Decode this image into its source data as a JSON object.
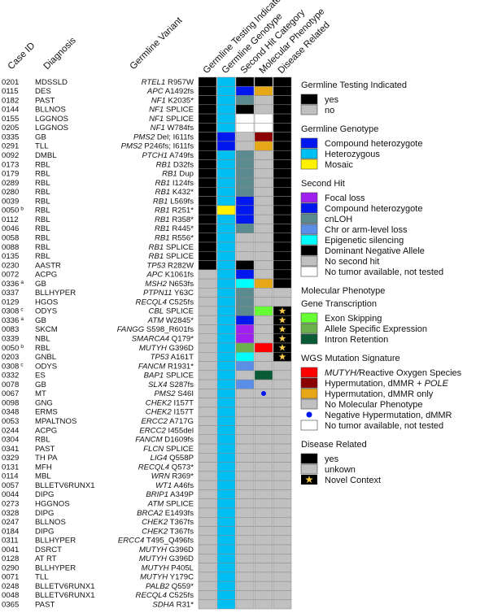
{
  "headers": {
    "case_id": "Case ID",
    "diagnosis": "Diagnosis",
    "variant": "Germline Variant",
    "col1": "Germline Testing Indicated",
    "col2": "Germline Genotype",
    "col3": "Second Hit Category",
    "col4": "Molecular Phenotype",
    "col5": "Disease Related"
  },
  "colors": {
    "black": "#000000",
    "gray": "#c0c0c0",
    "white": "#ffffff",
    "blue": "#0018f0",
    "cyan": "#00bff3",
    "yellow": "#fff200",
    "purple": "#a020f0",
    "teal": "#5b8a8f",
    "lightblue": "#5b8ee6",
    "aqua": "#00ffff",
    "green_bright": "#66ff33",
    "green": "#6ab04c",
    "green_dark": "#0a5c36",
    "red": "#ff0000",
    "darkred": "#8b0000",
    "orange": "#e6a817"
  },
  "chart_data": {
    "type": "heatmap",
    "columns": [
      "Germline Testing Indicated",
      "Germline Genotype",
      "Second Hit Category",
      "Molecular Phenotype",
      "Disease Related"
    ],
    "rows": [
      {
        "id": "0201",
        "sup": "",
        "dx": "MDSSLD",
        "gene": "RTEL1",
        "var": "R957W",
        "cells": [
          "black",
          "cyan",
          "black",
          "black",
          "black"
        ]
      },
      {
        "id": "0115",
        "sup": "",
        "dx": "DES",
        "gene": "APC",
        "var": "A1492fs",
        "cells": [
          "black",
          "cyan",
          "blue",
          "orange",
          "black"
        ]
      },
      {
        "id": "0182",
        "sup": "",
        "dx": "PAST",
        "gene": "NF1",
        "var": "K2035*",
        "cells": [
          "black",
          "cyan",
          "teal",
          "gray",
          "black"
        ]
      },
      {
        "id": "0144",
        "sup": "",
        "dx": "BLLNOS",
        "gene": "NF1",
        "var": "SPLICE",
        "cells": [
          "black",
          "cyan",
          "black",
          "gray",
          "black"
        ]
      },
      {
        "id": "0155",
        "sup": "",
        "dx": "LGGNOS",
        "gene": "NF1",
        "var": "SPLICE",
        "cells": [
          "black",
          "cyan",
          "white",
          "white",
          "black"
        ]
      },
      {
        "id": "0205",
        "sup": "",
        "dx": "LGGNOS",
        "gene": "NF1",
        "var": "W784fs",
        "cells": [
          "black",
          "cyan",
          "white",
          "white",
          "black"
        ]
      },
      {
        "id": "0335",
        "sup": "",
        "dx": "GB",
        "gene": "PMS2",
        "var": "Del; I611fs",
        "cells": [
          "black",
          "blue",
          "gray",
          "darkred",
          "black"
        ]
      },
      {
        "id": "0291",
        "sup": "",
        "dx": "TLL",
        "gene": "PMS2",
        "var": "P246fs; I611fs",
        "cells": [
          "black",
          "blue",
          "gray",
          "orange",
          "black"
        ]
      },
      {
        "id": "0092",
        "sup": "",
        "dx": "DMBL",
        "gene": "PTCH1",
        "var": "A749fs",
        "cells": [
          "black",
          "cyan",
          "teal",
          "gray",
          "black"
        ]
      },
      {
        "id": "0173",
        "sup": "",
        "dx": "RBL",
        "gene": "RB1",
        "var": "D32fs",
        "cells": [
          "black",
          "cyan",
          "teal",
          "gray",
          "black"
        ]
      },
      {
        "id": "0179",
        "sup": "",
        "dx": "RBL",
        "gene": "RB1",
        "var": "Dup",
        "cells": [
          "black",
          "cyan",
          "teal",
          "gray",
          "black"
        ]
      },
      {
        "id": "0289",
        "sup": "",
        "dx": "RBL",
        "gene": "RB1",
        "var": "I124fs",
        "cells": [
          "black",
          "cyan",
          "teal",
          "gray",
          "black"
        ]
      },
      {
        "id": "0280",
        "sup": "",
        "dx": "RBL",
        "gene": "RB1",
        "var": "K432*",
        "cells": [
          "black",
          "cyan",
          "teal",
          "gray",
          "black"
        ]
      },
      {
        "id": "0039",
        "sup": "",
        "dx": "RBL",
        "gene": "RB1",
        "var": "L569fs",
        "cells": [
          "black",
          "cyan",
          "blue",
          "gray",
          "black"
        ]
      },
      {
        "id": "0050",
        "sup": "b",
        "dx": "RBL",
        "gene": "RB1",
        "var": "R251*",
        "cells": [
          "black",
          "yellow",
          "blue",
          "gray",
          "black"
        ]
      },
      {
        "id": "0112",
        "sup": "",
        "dx": "RBL",
        "gene": "RB1",
        "var": "R358*",
        "cells": [
          "black",
          "cyan",
          "blue",
          "gray",
          "black"
        ]
      },
      {
        "id": "0046",
        "sup": "",
        "dx": "RBL",
        "gene": "RB1",
        "var": "R445*",
        "cells": [
          "black",
          "cyan",
          "teal",
          "gray",
          "black"
        ]
      },
      {
        "id": "0058",
        "sup": "",
        "dx": "RBL",
        "gene": "RB1",
        "var": "R556*",
        "cells": [
          "black",
          "cyan",
          "gray",
          "gray",
          "black"
        ]
      },
      {
        "id": "0088",
        "sup": "",
        "dx": "RBL",
        "gene": "RB1",
        "var": "SPLICE",
        "cells": [
          "black",
          "cyan",
          "gray",
          "gray",
          "black"
        ]
      },
      {
        "id": "0135",
        "sup": "",
        "dx": "RBL",
        "gene": "RB1",
        "var": "SPLICE",
        "cells": [
          "black",
          "cyan",
          "gray",
          "gray",
          "black"
        ]
      },
      {
        "id": "0230",
        "sup": "",
        "dx": "AASTR",
        "gene": "TP53",
        "var": "R282W",
        "cells": [
          "black",
          "cyan",
          "black",
          "gray",
          "black"
        ]
      },
      {
        "id": "0072",
        "sup": "",
        "dx": "ACPG",
        "gene": "APC",
        "var": "K1061fs",
        "cells": [
          "gray",
          "cyan",
          "blue",
          "gray",
          "black"
        ]
      },
      {
        "id": "0336",
        "sup": "a",
        "dx": "GB",
        "gene": "MSH2",
        "var": "N653fs",
        "cells": [
          "gray",
          "cyan",
          "aqua",
          "orange",
          "black"
        ]
      },
      {
        "id": "0337",
        "sup": "",
        "dx": "BLLHYPER",
        "gene": "PTPN11",
        "var": "Y63C",
        "cells": [
          "gray",
          "cyan",
          "teal",
          "gray",
          "gray"
        ]
      },
      {
        "id": "0129",
        "sup": "",
        "dx": "HGOS",
        "gene": "RECQL4",
        "var": "C525fs",
        "cells": [
          "gray",
          "cyan",
          "teal",
          "gray",
          "gray"
        ]
      },
      {
        "id": "0308",
        "sup": "c",
        "dx": "ODYS",
        "gene": "CBL",
        "var": "SPLICE",
        "cells": [
          "gray",
          "cyan",
          "teal",
          "green_bright",
          "star"
        ]
      },
      {
        "id": "0336",
        "sup": "a",
        "dx": "GB",
        "gene": "ATM",
        "var": "W2845*",
        "cells": [
          "gray",
          "cyan",
          "blue",
          "gray",
          "star"
        ]
      },
      {
        "id": "0083",
        "sup": "",
        "dx": "SKCM",
        "gene": "FANGG",
        "var": "S598_R601fs",
        "cells": [
          "gray",
          "cyan",
          "purple",
          "gray",
          "star"
        ]
      },
      {
        "id": "0339",
        "sup": "",
        "dx": "NBL",
        "gene": "SMARCA4",
        "var": "Q179*",
        "cells": [
          "gray",
          "cyan",
          "purple",
          "gray",
          "star"
        ]
      },
      {
        "id": "0050",
        "sup": "b",
        "dx": "RBL",
        "gene": "MUTYH",
        "var": "G396D",
        "cells": [
          "gray",
          "cyan",
          "green",
          "red",
          "star"
        ]
      },
      {
        "id": "0203",
        "sup": "",
        "dx": "GNBL",
        "gene": "TP53",
        "var": "A161T",
        "cells": [
          "gray",
          "cyan",
          "aqua",
          "gray",
          "star"
        ]
      },
      {
        "id": "0308",
        "sup": "c",
        "dx": "ODYS",
        "gene": "FANCM",
        "var": "R1931*",
        "cells": [
          "gray",
          "cyan",
          "lightblue",
          "gray",
          "gray"
        ]
      },
      {
        "id": "0332",
        "sup": "",
        "dx": "ES",
        "gene": "BAP1",
        "var": "SPLICE",
        "cells": [
          "gray",
          "cyan",
          "gray",
          "green_dark",
          "gray"
        ]
      },
      {
        "id": "0078",
        "sup": "",
        "dx": "GB",
        "gene": "SLX4",
        "var": "S287fs",
        "cells": [
          "gray",
          "cyan",
          "lightblue",
          "gray",
          "gray"
        ]
      },
      {
        "id": "0067",
        "sup": "",
        "dx": "MT",
        "gene": "PMS2",
        "var": "S46I",
        "cells": [
          "gray",
          "cyan",
          "gray",
          "dot",
          "gray"
        ]
      },
      {
        "id": "0098",
        "sup": "",
        "dx": "GNG",
        "gene": "CHEK2",
        "var": "I157T",
        "cells": [
          "gray",
          "cyan",
          "gray",
          "gray",
          "gray"
        ]
      },
      {
        "id": "0348",
        "sup": "",
        "dx": "ERMS",
        "gene": "CHEK2",
        "var": "I157T",
        "cells": [
          "gray",
          "cyan",
          "gray",
          "gray",
          "gray"
        ]
      },
      {
        "id": "0053",
        "sup": "",
        "dx": "MPALTNOS",
        "gene": "ERCC2",
        "var": "A717G",
        "cells": [
          "gray",
          "cyan",
          "gray",
          "gray",
          "gray"
        ]
      },
      {
        "id": "0244",
        "sup": "",
        "dx": "ACPG",
        "gene": "ERCC2",
        "var": "I455del",
        "cells": [
          "gray",
          "cyan",
          "gray",
          "gray",
          "gray"
        ]
      },
      {
        "id": "0304",
        "sup": "",
        "dx": "RBL",
        "gene": "FANCM",
        "var": "D1609fs",
        "cells": [
          "gray",
          "cyan",
          "gray",
          "gray",
          "gray"
        ]
      },
      {
        "id": "0341",
        "sup": "",
        "dx": "PAST",
        "gene": "FLCN",
        "var": "SPLICE",
        "cells": [
          "gray",
          "cyan",
          "gray",
          "gray",
          "gray"
        ]
      },
      {
        "id": "0329",
        "sup": "",
        "dx": "TH PA",
        "gene": "LIG4",
        "var": "Q558P",
        "cells": [
          "gray",
          "cyan",
          "gray",
          "gray",
          "gray"
        ]
      },
      {
        "id": "0131",
        "sup": "",
        "dx": "MFH",
        "gene": "RECQL4",
        "var": "Q573*",
        "cells": [
          "gray",
          "cyan",
          "gray",
          "gray",
          "gray"
        ]
      },
      {
        "id": "0114",
        "sup": "",
        "dx": "MBL",
        "gene": "WRN",
        "var": "R369*",
        "cells": [
          "gray",
          "cyan",
          "gray",
          "gray",
          "gray"
        ]
      },
      {
        "id": "0057",
        "sup": "",
        "dx": "BLLETV6RUNX1",
        "gene": "WT1",
        "var": "A46fs",
        "cells": [
          "gray",
          "cyan",
          "gray",
          "gray",
          "gray"
        ]
      },
      {
        "id": "0044",
        "sup": "",
        "dx": "DIPG",
        "gene": "BRIP1",
        "var": "A349P",
        "cells": [
          "gray",
          "cyan",
          "gray",
          "gray",
          "gray"
        ]
      },
      {
        "id": "0273",
        "sup": "",
        "dx": "HGGNOS",
        "gene": "ATM",
        "var": "SPLICE",
        "cells": [
          "gray",
          "cyan",
          "gray",
          "gray",
          "gray"
        ]
      },
      {
        "id": "0328",
        "sup": "",
        "dx": "DIPG",
        "gene": "BRCA2",
        "var": "E1493fs",
        "cells": [
          "gray",
          "cyan",
          "gray",
          "gray",
          "gray"
        ]
      },
      {
        "id": "0247",
        "sup": "",
        "dx": "BLLNOS",
        "gene": "CHEK2",
        "var": "T367fs",
        "cells": [
          "gray",
          "cyan",
          "gray",
          "gray",
          "gray"
        ]
      },
      {
        "id": "0184",
        "sup": "",
        "dx": "DIPG",
        "gene": "CHEK2",
        "var": "T367fs",
        "cells": [
          "gray",
          "cyan",
          "gray",
          "gray",
          "gray"
        ]
      },
      {
        "id": "0311",
        "sup": "",
        "dx": "BLLHYPER",
        "gene": "ERCC4",
        "var": "T495_Q496fs",
        "cells": [
          "gray",
          "cyan",
          "gray",
          "gray",
          "gray"
        ]
      },
      {
        "id": "0041",
        "sup": "",
        "dx": "DSRCT",
        "gene": "MUTYH",
        "var": "G396D",
        "cells": [
          "gray",
          "cyan",
          "gray",
          "gray",
          "gray"
        ]
      },
      {
        "id": "0128",
        "sup": "",
        "dx": "AT RT",
        "gene": "MUTYH",
        "var": "G396D",
        "cells": [
          "gray",
          "cyan",
          "gray",
          "gray",
          "gray"
        ]
      },
      {
        "id": "0290",
        "sup": "",
        "dx": "BLLHYPER",
        "gene": "MUTYH",
        "var": "P405L",
        "cells": [
          "gray",
          "cyan",
          "gray",
          "gray",
          "gray"
        ]
      },
      {
        "id": "0071",
        "sup": "",
        "dx": "TLL",
        "gene": "MUTYH",
        "var": "Y179C",
        "cells": [
          "gray",
          "cyan",
          "gray",
          "gray",
          "gray"
        ]
      },
      {
        "id": "0248",
        "sup": "",
        "dx": "BLLETV6RUNX1",
        "gene": "PALB2",
        "var": "Q559*",
        "cells": [
          "gray",
          "cyan",
          "gray",
          "gray",
          "gray"
        ]
      },
      {
        "id": "0048",
        "sup": "",
        "dx": "BLLETV6RUNX1",
        "gene": "RECQL4",
        "var": "C525fs",
        "cells": [
          "gray",
          "cyan",
          "gray",
          "gray",
          "gray"
        ]
      },
      {
        "id": "0365",
        "sup": "",
        "dx": "PAST",
        "gene": "SDHA",
        "var": "R31*",
        "cells": [
          "gray",
          "cyan",
          "gray",
          "gray",
          "gray"
        ]
      }
    ]
  },
  "legend": [
    {
      "title": "Germline Testing Indicated",
      "items": [
        {
          "label": "yes",
          "color": "black"
        },
        {
          "label": "no",
          "color": "gray"
        }
      ]
    },
    {
      "title": "Germline Genotype",
      "items": [
        {
          "label": "Compound heterozygote",
          "color": "blue"
        },
        {
          "label": "Heterozygous",
          "color": "cyan"
        },
        {
          "label": "Mosaic",
          "color": "yellow"
        }
      ]
    },
    {
      "title": "Second Hit",
      "items": [
        {
          "label": "Focal loss",
          "color": "purple"
        },
        {
          "label": "Compound heterozygote",
          "color": "blue"
        },
        {
          "label": "cnLOH",
          "color": "teal"
        },
        {
          "label": "Chr or arm-level loss",
          "color": "lightblue"
        },
        {
          "label": "Epigenetic silencing",
          "color": "aqua"
        },
        {
          "label": "Dominant Negative Allele",
          "color": "black"
        },
        {
          "label": "No second hit",
          "color": "gray"
        },
        {
          "label": "No tumor available, not tested",
          "color": "white"
        }
      ]
    },
    {
      "title": "Molecular Phenotype",
      "subtitle": "Gene Transcription",
      "items": [
        {
          "label": "Exon Skipping",
          "color": "green_bright"
        },
        {
          "label": "Allele Specific Expression",
          "color": "green"
        },
        {
          "label": "Intron Retention",
          "color": "green_dark"
        }
      ]
    },
    {
      "title": "WGS Mutation Signature",
      "items": [
        {
          "label": "Reactive Oxygen Species",
          "ital": "MUTYH/",
          "color": "red"
        },
        {
          "label": "Hypermutation, dMMR + ",
          "ital2": "POLE",
          "color": "darkred"
        },
        {
          "label": "Hypermutation, dMMR only",
          "color": "orange"
        },
        {
          "label": "No Molecular Phenotype",
          "color": "gray"
        },
        {
          "label": "Negative Hypermutation, dMMR",
          "color": "dot"
        },
        {
          "label": "No tumor available, not tested",
          "color": "white"
        }
      ]
    },
    {
      "title": "Disease Related",
      "items": [
        {
          "label": "yes",
          "color": "black"
        },
        {
          "label": "unkown",
          "color": "gray"
        },
        {
          "label": "Novel Context",
          "color": "star"
        }
      ]
    }
  ]
}
